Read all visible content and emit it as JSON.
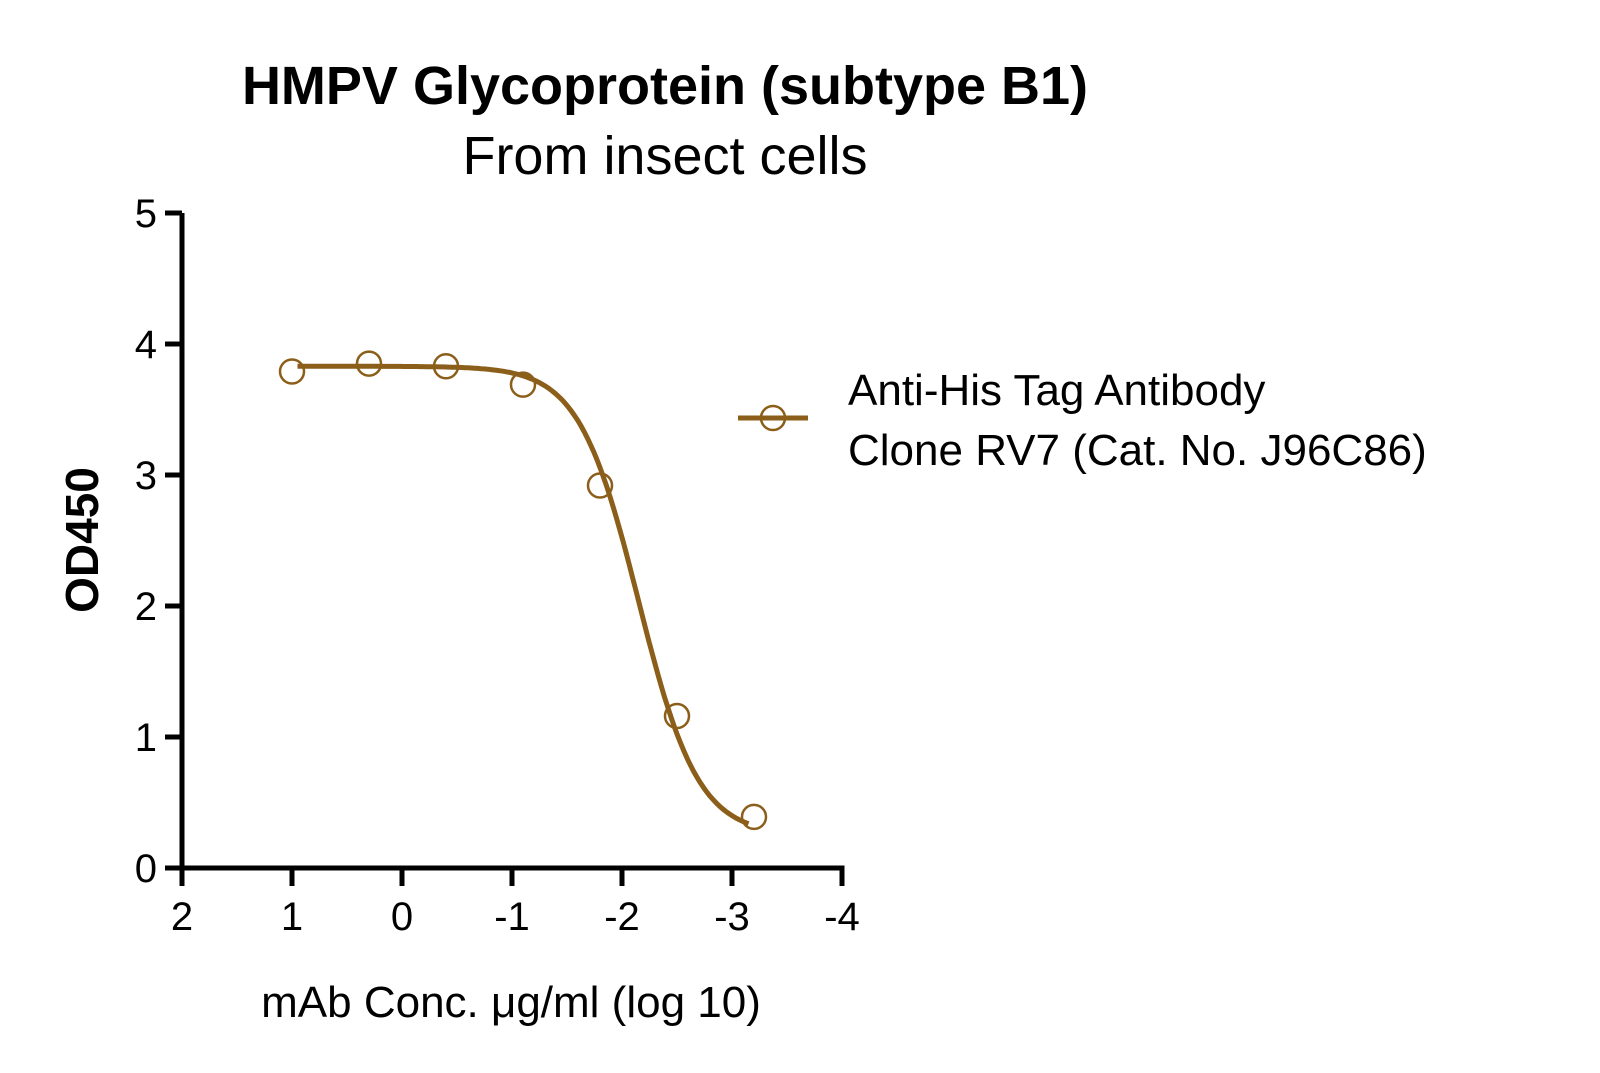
{
  "chart_data": {
    "type": "line",
    "title": "HMPV Glycoprotein (subtype B1)",
    "subtitle": "From insect cells",
    "xlabel": "mAb Conc. μg/ml (log 10)",
    "ylabel": "OD450",
    "xlim": [
      2,
      -4
    ],
    "ylim": [
      0,
      5
    ],
    "x_ticks": [
      "2",
      "1",
      "0",
      "-1",
      "-2",
      "-3",
      "-4"
    ],
    "x_tick_values": [
      2,
      1,
      0,
      -1,
      -2,
      -3,
      -4
    ],
    "y_ticks": [
      "0",
      "1",
      "2",
      "3",
      "4",
      "5"
    ],
    "y_tick_values": [
      0,
      1,
      2,
      3,
      4,
      5
    ],
    "grid": false,
    "legend_position": "right",
    "series": [
      {
        "name_lines": [
          "Anti-His Tag Antibody",
          "Clone RV7 (Cat. No. J96C86)"
        ],
        "color": "#8B5E1A",
        "marker": "open-circle",
        "points": [
          {
            "x": 1.0,
            "y": 3.79
          },
          {
            "x": 0.3,
            "y": 3.85
          },
          {
            "x": -0.4,
            "y": 3.83
          },
          {
            "x": -1.1,
            "y": 3.69
          },
          {
            "x": -1.8,
            "y": 2.92
          },
          {
            "x": -2.5,
            "y": 1.16
          },
          {
            "x": -3.2,
            "y": 0.39
          }
        ],
        "fit": {
          "model": "4PL",
          "top": 3.83,
          "bottom": 0.25,
          "logEC50": -2.15,
          "hill": 1.6
        }
      }
    ]
  }
}
